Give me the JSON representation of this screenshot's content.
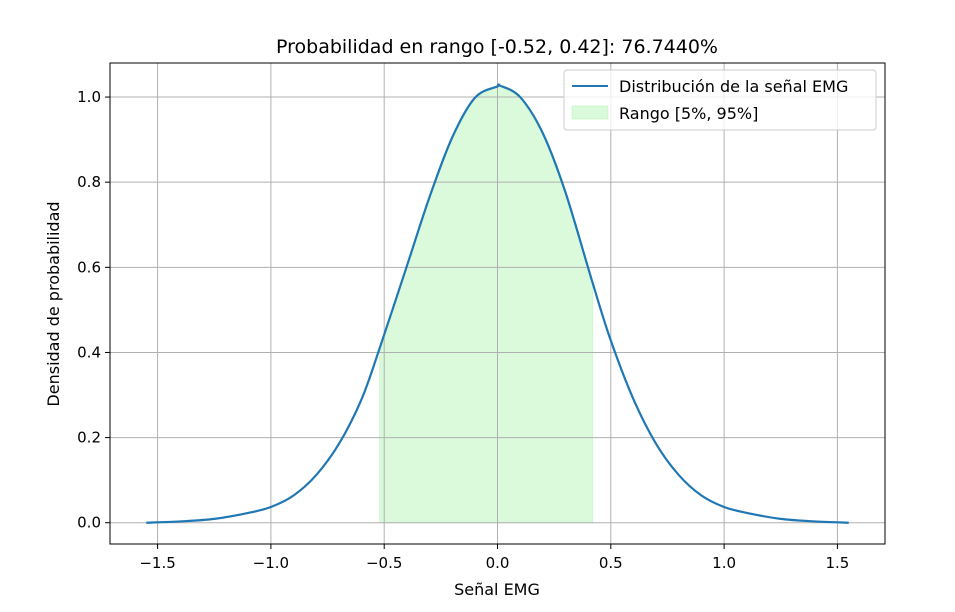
{
  "chart_data": {
    "type": "line",
    "title": "Probabilidad en rango [-0.52, 0.42]: 76.7440%",
    "xlabel": "Señal EMG",
    "ylabel": "Densidad de probabilidad",
    "xlim": [
      -1.71,
      1.71
    ],
    "ylim": [
      -0.05,
      1.08
    ],
    "x_ticks": [
      -1.5,
      -1.0,
      -0.5,
      0.0,
      0.5,
      1.0,
      1.5
    ],
    "x_tick_labels": [
      "−1.5",
      "−1.0",
      "−0.5",
      "0.0",
      "0.5",
      "1.0",
      "1.5"
    ],
    "y_ticks": [
      0.0,
      0.2,
      0.4,
      0.6,
      0.8,
      1.0
    ],
    "y_tick_labels": [
      "0.0",
      "0.2",
      "0.4",
      "0.6",
      "0.8",
      "1.0"
    ],
    "grid": true,
    "legend_position": "top-right",
    "series": [
      {
        "name": "Distribución de la señal EMG",
        "kind": "line",
        "color": "#1f77b4",
        "x": [
          -1.55,
          -1.4,
          -1.25,
          -1.1,
          -1.0,
          -0.9,
          -0.8,
          -0.7,
          -0.6,
          -0.52,
          -0.4,
          -0.3,
          -0.2,
          -0.1,
          0.0,
          0.01,
          0.1,
          0.2,
          0.3,
          0.42,
          0.5,
          0.6,
          0.7,
          0.8,
          0.9,
          1.0,
          1.1,
          1.25,
          1.4,
          1.55
        ],
        "y": [
          0.0,
          0.003,
          0.009,
          0.023,
          0.037,
          0.064,
          0.112,
          0.185,
          0.29,
          0.41,
          0.603,
          0.765,
          0.905,
          0.998,
          1.025,
          1.027,
          1.0,
          0.915,
          0.776,
          0.563,
          0.428,
          0.29,
          0.185,
          0.112,
          0.064,
          0.037,
          0.023,
          0.009,
          0.003,
          0.0
        ]
      },
      {
        "name": "Rango [5%, 95%]",
        "kind": "fill",
        "color": "#90ee90",
        "x_start": -0.52,
        "x_end": 0.42
      }
    ]
  }
}
